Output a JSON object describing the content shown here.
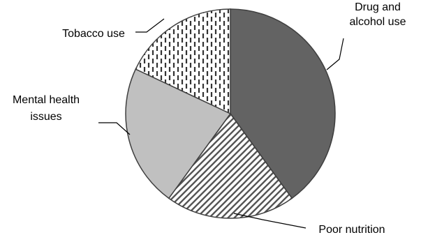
{
  "chart_data": {
    "type": "pie",
    "title": "",
    "start_angle_deg": 0,
    "direction": "clockwise",
    "slices": [
      {
        "label_lines": [
          "Drug and",
          "alcohol use"
        ],
        "value": 40,
        "fill": "#636363",
        "pattern": "solid"
      },
      {
        "label_lines": [
          "Poor nutrition"
        ],
        "value": 20,
        "fill": "#ffffff",
        "pattern": "diagonal-stripes"
      },
      {
        "label_lines": [
          "Mental health",
          "issues"
        ],
        "value": 22,
        "fill": "#c0c0c0",
        "pattern": "solid"
      },
      {
        "label_lines": [
          "Tobacco use"
        ],
        "value": 18,
        "fill": "#ffffff",
        "pattern": "vertical-dashes"
      }
    ]
  }
}
